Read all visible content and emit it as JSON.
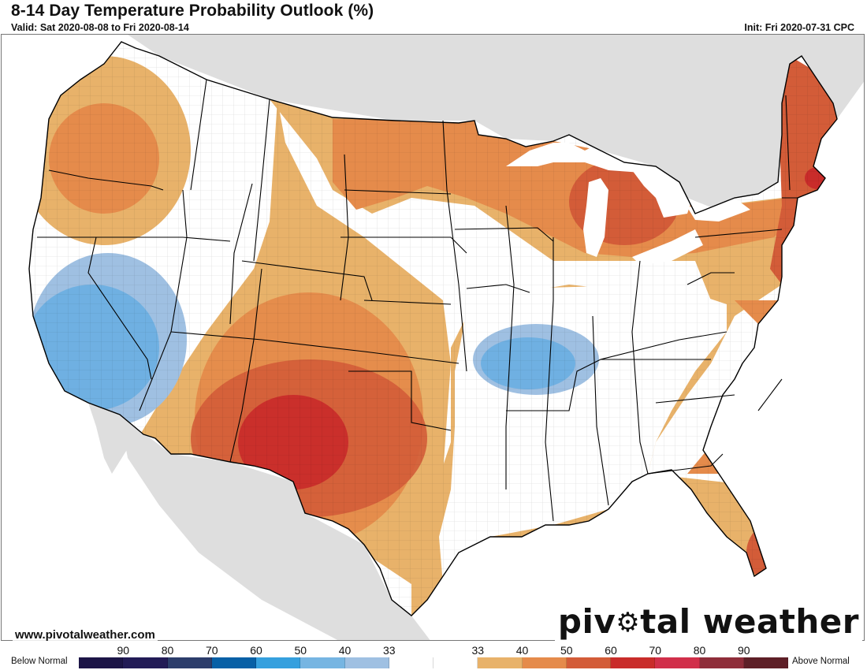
{
  "header": {
    "title": "8-14 Day Temperature Probability Outlook (%)",
    "valid": "Valid: Sat 2020-08-08 to Fri 2020-08-14",
    "init": "Init: Fri 2020-07-31 CPC"
  },
  "footer": {
    "site_url": "www.pivotalweather.com",
    "brand_prefix": "piv",
    "brand_gear": "⚙",
    "brand_suffix": "tal weather"
  },
  "colorbar": {
    "left_label": "Below Normal",
    "right_label": "Above Normal",
    "below_ticks": [
      "90",
      "80",
      "70",
      "60",
      "50",
      "40",
      "33"
    ],
    "above_ticks": [
      "33",
      "40",
      "50",
      "60",
      "70",
      "80",
      "90"
    ],
    "segments": [
      {
        "category": "below",
        "range": "90-100",
        "color": "#1c1547"
      },
      {
        "category": "below",
        "range": "80-90",
        "color": "#221b56"
      },
      {
        "category": "below",
        "range": "70-80",
        "color": "#2c3d6b"
      },
      {
        "category": "below",
        "range": "60-70",
        "color": "#0760a6"
      },
      {
        "category": "below",
        "range": "50-60",
        "color": "#35a0de"
      },
      {
        "category": "below",
        "range": "40-50",
        "color": "#76b5e2"
      },
      {
        "category": "below",
        "range": "33-40",
        "color": "#9fc0e2"
      },
      {
        "category": "near",
        "range": "33",
        "color": "#ffffff"
      },
      {
        "category": "near",
        "range": "33",
        "color": "#ffffff"
      },
      {
        "category": "above",
        "range": "33-40",
        "color": "#e8b26a"
      },
      {
        "category": "above",
        "range": "40-50",
        "color": "#e58b4b"
      },
      {
        "category": "above",
        "range": "50-60",
        "color": "#d35c38"
      },
      {
        "category": "above",
        "range": "60-70",
        "color": "#c92c2a"
      },
      {
        "category": "above",
        "range": "70-80",
        "color": "#d12f4a"
      },
      {
        "category": "above",
        "range": "80-90",
        "color": "#8f2d3a"
      },
      {
        "category": "above",
        "range": "90-100",
        "color": "#5e1f27"
      }
    ]
  },
  "map": {
    "colors": {
      "land_outside": "#dedede",
      "water": "#ffffff",
      "conus_base": "#ffffff",
      "above_33_40": "#e8b26a",
      "above_40_50": "#e58b4b",
      "above_50_60": "#d35c38",
      "above_60_70": "#c92c2a",
      "below_33_40": "#9fc0e2",
      "below_40_50": "#6fb0e2",
      "state_line": "#000000"
    },
    "regions": [
      {
        "name": "Pacific Northwest",
        "category": "above",
        "max_prob": "40-50"
      },
      {
        "name": "California / Nevada",
        "category": "below",
        "max_prob": "40-50"
      },
      {
        "name": "Northern/Central Rockies & Plains",
        "category": "above",
        "max_prob": "33-40"
      },
      {
        "name": "Dakotas / Upper Midwest",
        "category": "above",
        "max_prob": "40-50"
      },
      {
        "name": "Michigan",
        "category": "above",
        "max_prob": "50-60"
      },
      {
        "name": "Southwest / New Mexico / West Texas",
        "category": "above",
        "max_prob": "60-70"
      },
      {
        "name": "Ozarks / Mid-Mississippi Valley",
        "category": "below",
        "max_prob": "40-50"
      },
      {
        "name": "Lower Mississippi / Tennessee Valley / East Texas",
        "category": "near",
        "max_prob": "33"
      },
      {
        "name": "Northeast / New England",
        "category": "above",
        "max_prob": "50-60"
      },
      {
        "name": "Southern New England coast",
        "category": "above",
        "max_prob": "60-70"
      },
      {
        "name": "Southeast / Florida",
        "category": "above",
        "max_prob": "50-60"
      }
    ]
  }
}
